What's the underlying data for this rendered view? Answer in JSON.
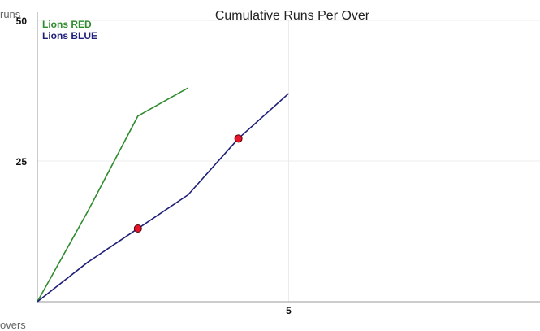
{
  "chart_data": {
    "type": "line",
    "title": "Cumulative Runs Per Over",
    "xlabel": "overs",
    "ylabel": "runs",
    "xlim": [
      0,
      10
    ],
    "ylim": [
      0,
      50
    ],
    "x_ticks": [
      5
    ],
    "y_ticks": [
      25,
      50
    ],
    "grid": true,
    "legend": "top-left",
    "series": [
      {
        "name": "Lions RED",
        "color": "#2e8b2e",
        "x": [
          0,
          1,
          2,
          3
        ],
        "y": [
          0,
          16,
          33,
          38
        ],
        "wickets": []
      },
      {
        "name": "Lions BLUE",
        "color": "#1f1f7a",
        "x": [
          0,
          1,
          2,
          3,
          4,
          5
        ],
        "y": [
          0,
          7,
          13,
          19,
          29,
          37
        ],
        "wickets": [
          2,
          4
        ]
      }
    ],
    "wicket_color": "#e8142b"
  }
}
